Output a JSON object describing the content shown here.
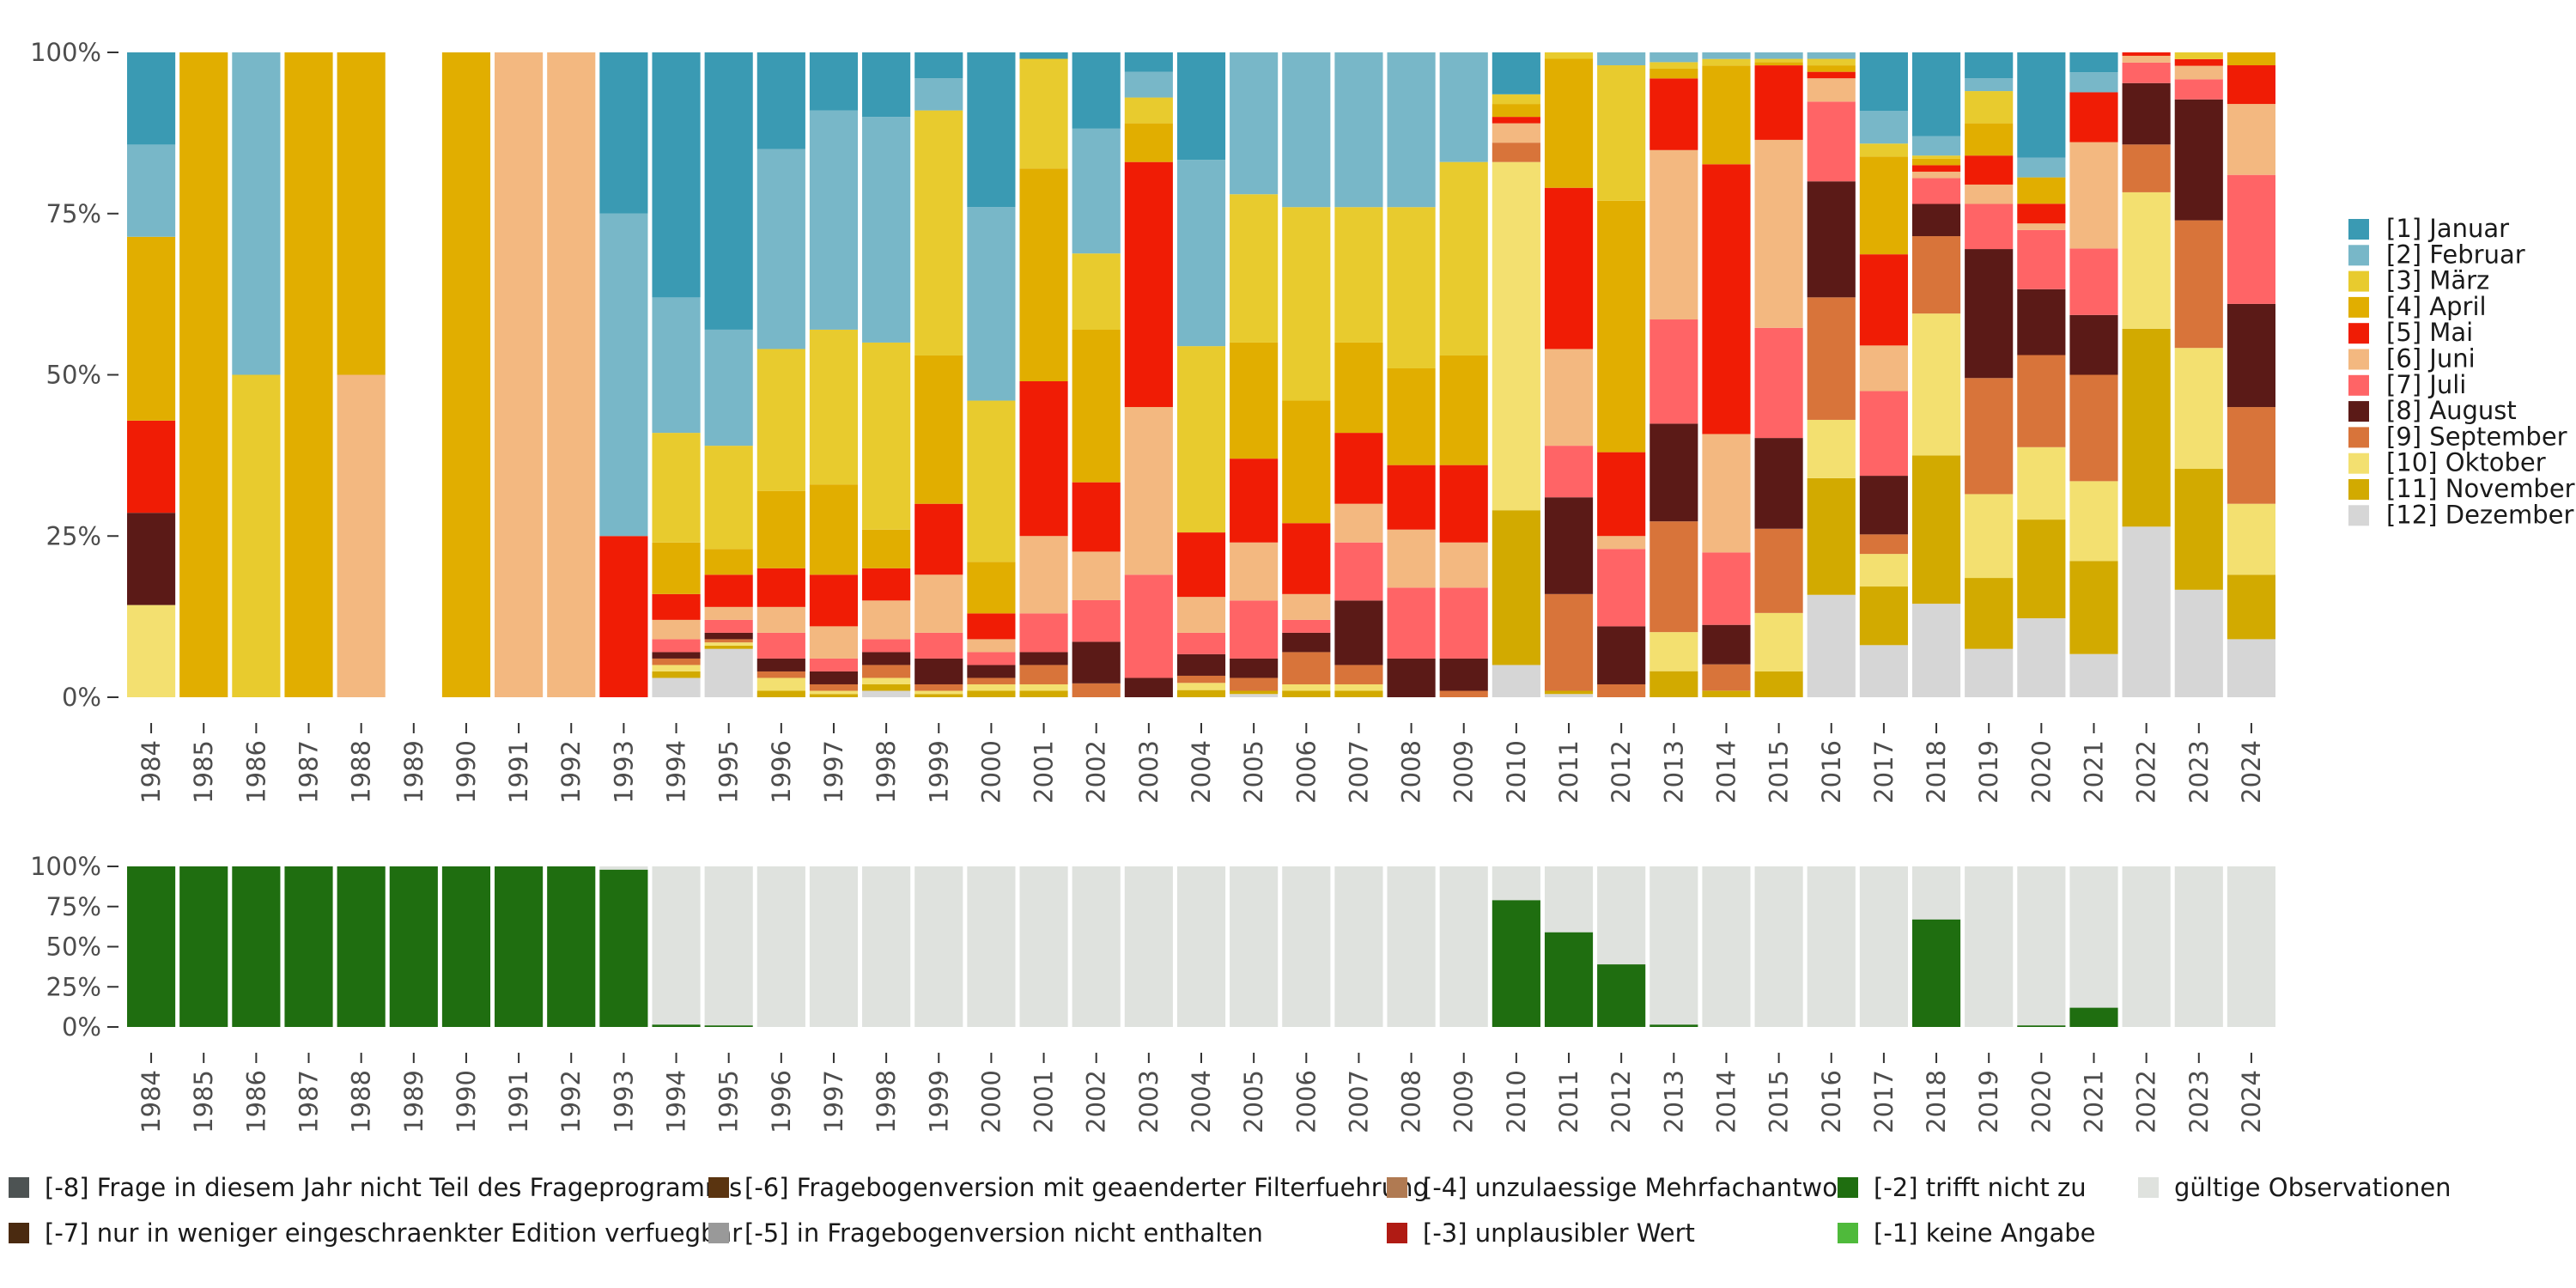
{
  "colors": {
    "months": [
      "#3a9ab3",
      "#78b7c8",
      "#e8cb2e",
      "#e1ae00",
      "#f01c05",
      "#f3b880",
      "#ff6466",
      "#5b1a17",
      "#d8743a",
      "#f3e070",
      "#d2aa00",
      "#d6d6d6"
    ],
    "valid": "#dfe2de",
    "missing": {
      "-8": "#4d5353",
      "-7": "#4a2a10",
      "-6": "#5a3410",
      "-5": "#999999",
      "-4": "#b07a52",
      "-3": "#b01b14",
      "-2": "#1f6e10",
      "-1": "#4fba3b"
    },
    "axis_text": "#4d4d4d"
  },
  "chart_data": [
    {
      "type": "bar",
      "stacked": true,
      "title": "",
      "ylim": [
        0,
        100
      ],
      "ytick_labels": [
        "0%",
        "25%",
        "50%",
        "75%",
        "100%"
      ],
      "categories": [
        "1984",
        "1985",
        "1986",
        "1987",
        "1988",
        "1989",
        "1990",
        "1991",
        "1992",
        "1993",
        "1994",
        "1995",
        "1996",
        "1997",
        "1998",
        "1999",
        "2000",
        "2001",
        "2002",
        "2003",
        "2004",
        "2005",
        "2006",
        "2007",
        "2008",
        "2009",
        "2010",
        "2011",
        "2012",
        "2013",
        "2014",
        "2015",
        "2016",
        "2017",
        "2018",
        "2019",
        "2020",
        "2021",
        "2022",
        "2023",
        "2024"
      ],
      "series_names": [
        "[1] Januar",
        "[2] Februar",
        "[3] März",
        "[4] April",
        "[5] Mai",
        "[6] Juni",
        "[7] Juli",
        "[8] August",
        "[9] September",
        "[10] Oktober",
        "[11] November",
        "[12] Dezember"
      ],
      "values": [
        [
          14.3,
          14.3,
          0,
          28.5,
          14.3,
          0,
          0,
          14.3,
          0,
          14.3,
          0,
          0
        ],
        [
          0,
          0,
          0,
          100,
          0,
          0,
          0,
          0,
          0,
          0,
          0,
          0
        ],
        [
          0,
          50,
          50,
          0,
          0,
          0,
          0,
          0,
          0,
          0,
          0,
          0
        ],
        [
          0,
          0,
          0,
          100,
          0,
          0,
          0,
          0,
          0,
          0,
          0,
          0
        ],
        [
          0,
          0,
          0,
          50,
          0,
          50,
          0,
          0,
          0,
          0,
          0,
          0
        ],
        null,
        [
          0,
          0,
          0,
          100,
          0,
          0,
          0,
          0,
          0,
          0,
          0,
          0
        ],
        [
          0,
          0,
          0,
          0,
          0,
          100,
          0,
          0,
          0,
          0,
          0,
          0
        ],
        [
          0,
          0,
          0,
          0,
          0,
          100,
          0,
          0,
          0,
          0,
          0,
          0
        ],
        [
          25,
          50,
          0,
          0,
          25,
          0,
          0,
          0,
          0,
          0,
          0,
          0
        ],
        [
          38,
          21,
          17,
          8,
          4,
          3,
          2,
          1,
          1,
          1,
          1,
          3
        ],
        [
          43,
          18,
          16,
          4,
          5,
          2,
          2,
          1,
          0.5,
          0.5,
          0.5,
          7.5
        ],
        [
          15,
          31,
          22,
          12,
          6,
          4,
          4,
          2,
          1,
          2,
          1,
          0
        ],
        [
          9,
          34,
          24,
          14,
          8,
          5,
          2,
          2,
          1,
          0.5,
          0.5,
          0
        ],
        [
          10,
          35,
          29,
          6,
          5,
          6,
          2,
          2,
          2,
          1,
          1,
          1
        ],
        [
          4,
          5,
          38,
          23,
          11,
          9,
          4,
          4,
          1,
          0.5,
          0.5,
          0
        ],
        [
          24,
          30,
          25,
          8,
          4,
          2,
          2,
          2,
          1,
          1,
          1,
          0
        ],
        [
          1,
          0,
          17,
          33,
          24,
          12,
          6,
          2,
          3,
          1,
          1,
          0
        ],
        [
          11,
          18,
          11,
          22,
          10,
          7,
          6,
          6,
          2,
          0,
          0,
          0
        ],
        [
          3,
          4,
          4,
          6,
          38,
          26,
          16,
          3,
          0,
          0,
          0,
          0
        ],
        [
          15,
          26,
          26,
          0,
          9,
          5,
          3,
          3,
          1,
          1,
          1,
          0
        ],
        [
          0,
          22,
          23,
          18,
          13,
          9,
          9,
          3,
          2,
          0,
          0.5,
          0.5
        ],
        [
          0,
          24,
          30,
          19,
          11,
          4,
          2,
          3,
          5,
          1,
          1,
          0
        ],
        [
          0,
          24,
          21,
          14,
          11,
          6,
          9,
          10,
          3,
          1,
          1,
          0
        ],
        [
          0,
          24,
          25,
          15,
          10,
          9,
          11,
          6,
          0,
          0,
          0,
          0
        ],
        [
          0,
          17,
          30,
          17,
          12,
          7,
          11,
          5,
          1,
          0,
          0,
          0
        ],
        [
          6.5,
          0,
          1.5,
          2,
          1,
          3,
          0,
          0,
          3,
          54,
          24,
          5
        ],
        [
          0,
          0,
          1,
          20,
          25,
          15,
          8,
          15,
          15,
          0,
          0.5,
          0.5
        ],
        [
          0,
          2,
          21,
          39,
          13,
          2,
          12,
          9,
          2,
          0,
          0,
          0
        ],
        [
          0,
          1.5,
          1,
          1.5,
          11,
          26,
          16,
          15,
          17,
          6,
          4,
          0
        ],
        [
          0,
          1,
          1,
          15,
          41,
          18,
          11,
          6,
          4,
          0,
          1,
          0
        ],
        [
          0,
          1,
          0.5,
          0.5,
          11.5,
          29,
          17,
          14,
          13,
          9,
          4,
          0
        ],
        [
          0,
          1,
          1,
          1,
          1,
          3.6,
          12.3,
          17.9,
          18.9,
          9,
          18,
          15.8
        ],
        [
          9,
          5,
          2,
          15,
          14,
          7,
          13,
          9,
          3,
          5,
          9,
          8
        ],
        [
          13,
          3,
          0.5,
          1,
          1,
          1,
          4,
          5,
          12,
          22,
          23,
          14.5
        ],
        [
          4,
          2,
          5,
          5,
          4.5,
          3,
          7,
          20,
          18,
          13,
          11,
          7.5
        ],
        [
          16,
          3,
          0,
          4,
          3,
          1,
          9,
          10,
          14,
          11,
          15,
          12
        ],
        [
          3,
          3,
          0,
          0,
          7.5,
          16,
          10,
          9,
          16,
          12,
          14,
          6.5
        ],
        [
          0,
          0,
          0,
          0,
          0.5,
          1,
          3,
          9,
          7,
          20,
          29,
          25
        ],
        [
          0,
          0,
          1,
          0,
          1,
          2,
          3,
          18,
          19,
          18,
          18,
          16
        ],
        [
          0,
          0,
          0,
          2,
          6,
          11,
          20,
          16,
          15,
          11,
          10,
          9
        ]
      ]
    },
    {
      "type": "bar",
      "stacked": true,
      "title": "",
      "ylim": [
        0,
        100
      ],
      "ytick_labels": [
        "0%",
        "25%",
        "50%",
        "75%",
        "100%"
      ],
      "categories": [
        "1984",
        "1985",
        "1986",
        "1987",
        "1988",
        "1989",
        "1990",
        "1991",
        "1992",
        "1993",
        "1994",
        "1995",
        "1996",
        "1997",
        "1998",
        "1999",
        "2000",
        "2001",
        "2002",
        "2003",
        "2004",
        "2005",
        "2006",
        "2007",
        "2008",
        "2009",
        "2010",
        "2011",
        "2012",
        "2013",
        "2014",
        "2015",
        "2016",
        "2017",
        "2018",
        "2019",
        "2020",
        "2021",
        "2022",
        "2023",
        "2024"
      ],
      "series_names": [
        "[-2] trifft nicht zu",
        "gültige Observationen"
      ],
      "trifft_nicht_zu": [
        100,
        100,
        100,
        100,
        100,
        100,
        100,
        100,
        100,
        98,
        1.5,
        1,
        0,
        0,
        0,
        0,
        0,
        0,
        0,
        0,
        0,
        0,
        0,
        0,
        0,
        0,
        79,
        59,
        39,
        1.5,
        0,
        0,
        0,
        0,
        67,
        0,
        1,
        12,
        0,
        0,
        0
      ]
    }
  ],
  "legend_main": {
    "items": [
      "[1] Januar",
      "[2] Februar",
      "[3] März",
      "[4] April",
      "[5] Mai",
      "[6] Juni",
      "[7] Juli",
      "[8] August",
      "[9] September",
      "[10] Oktober",
      "[11] November",
      "[12] Dezember"
    ]
  },
  "legend_bottom": {
    "items": [
      {
        "code": "-8",
        "label": "[-8] Frage in diesem Jahr nicht Teil des Frageprogramms"
      },
      {
        "code": "-7",
        "label": "[-7] nur in weniger eingeschraenkter Edition verfuegbar"
      },
      {
        "code": "-6",
        "label": "[-6] Fragebogenversion mit geaenderter Filterfuehrung"
      },
      {
        "code": "-5",
        "label": "[-5] in Fragebogenversion nicht enthalten"
      },
      {
        "code": "-4",
        "label": "[-4] unzulaessige Mehrfachantwort"
      },
      {
        "code": "-3",
        "label": "[-3] unplausibler Wert"
      },
      {
        "code": "-2",
        "label": "[-2] trifft nicht zu"
      },
      {
        "code": "-1",
        "label": "[-1] keine Angabe"
      },
      {
        "code": "valid",
        "label": "gültige Observationen"
      }
    ]
  }
}
